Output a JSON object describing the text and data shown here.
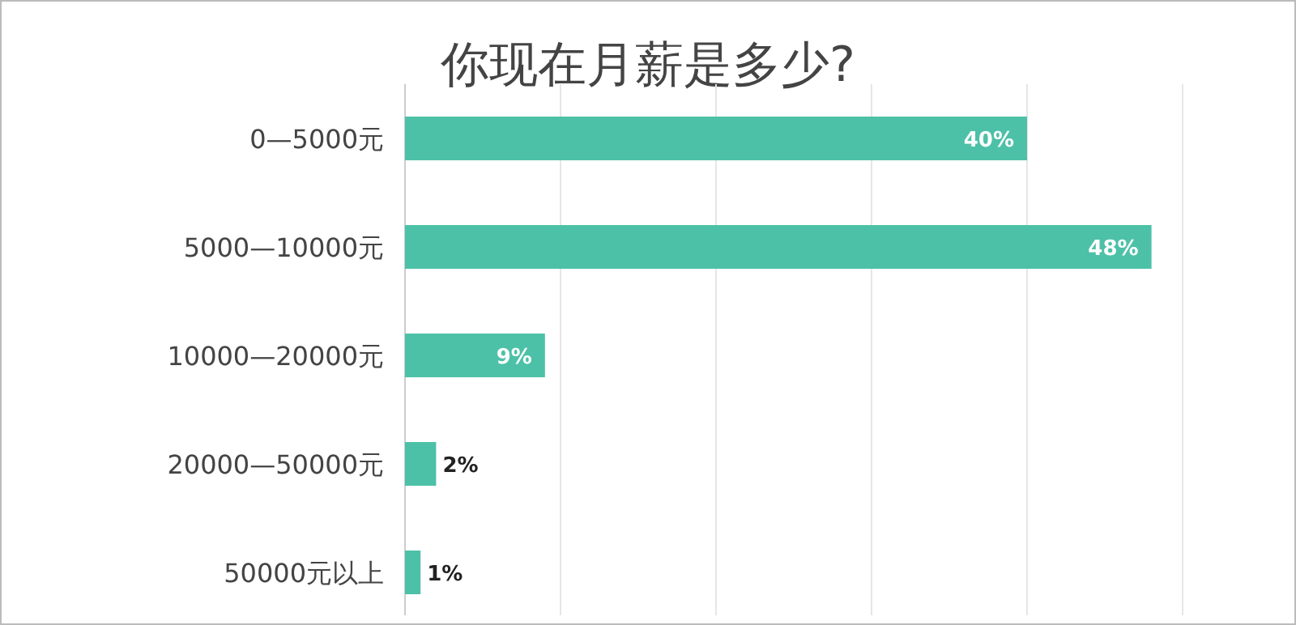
{
  "chart_data": {
    "type": "bar",
    "orientation": "horizontal",
    "title": "你现在月薪是多少?",
    "categories": [
      "0—5000元",
      "5000—10000元",
      "10000—20000元",
      "20000—50000元",
      "50000元以上"
    ],
    "values": [
      40,
      48,
      9,
      2,
      1
    ],
    "value_labels": [
      "40%",
      "48%",
      "9%",
      "2%",
      "1%"
    ],
    "color": "#4cc1a7",
    "xlim": [
      0,
      50
    ],
    "xticks": [
      {
        "value": 0,
        "label": null
      },
      {
        "value": 10,
        "label": null
      },
      {
        "value": 20,
        "label": null
      },
      {
        "value": 30,
        "label": null
      },
      {
        "value": 40,
        "label": null
      },
      {
        "value": 50,
        "label": null
      }
    ],
    "grid": "x"
  }
}
